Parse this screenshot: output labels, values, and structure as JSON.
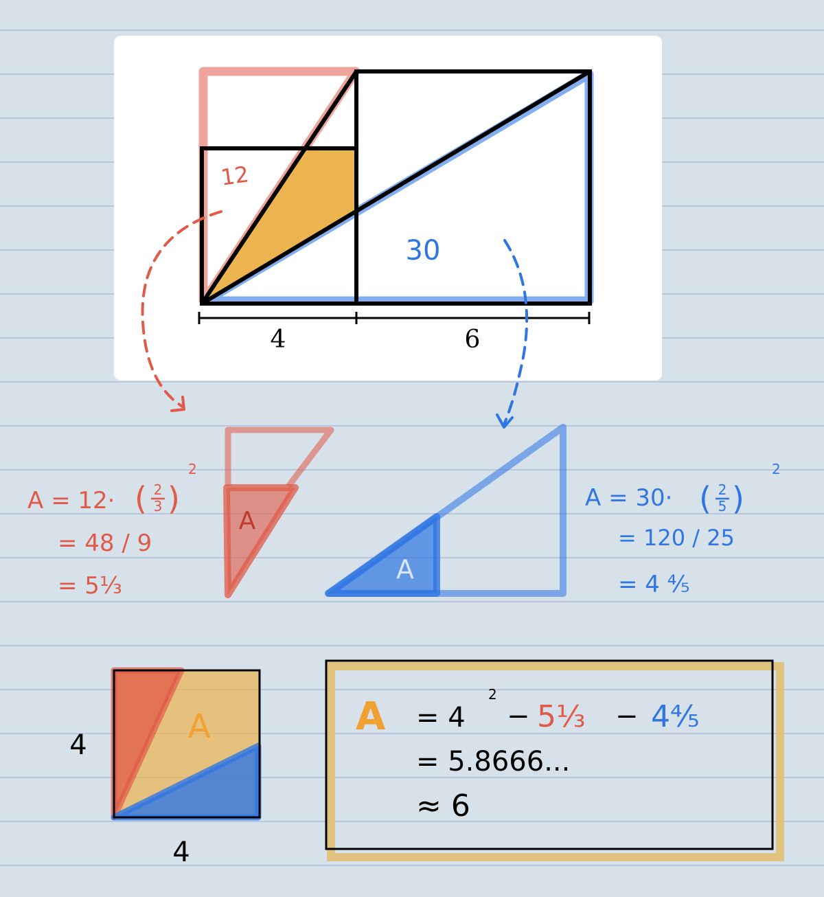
{
  "figure": {
    "small_area_label": "12",
    "large_area_label": "30",
    "width_left": "4",
    "width_right": "6"
  },
  "red_calc": {
    "formula_prefix": "A = 12·",
    "frac_num": "2",
    "frac_den": "3",
    "exponent": "2",
    "line2": "= 48 / 9",
    "line3": "= 5⅓",
    "triangle_label": "A"
  },
  "blue_calc": {
    "formula_prefix": "A = 30·",
    "frac_num": "2",
    "frac_den": "5",
    "exponent": "2",
    "line2": "= 120 / 25",
    "line3": "= 4 ⁴⁄₅",
    "triangle_label": "A"
  },
  "square": {
    "side_left": "4",
    "side_bottom": "4",
    "region_label": "A"
  },
  "result": {
    "a_label": "A",
    "eq1": "= 4",
    "exp": "2",
    "minus1": "−",
    "term_red": "5⅓",
    "minus2": "−",
    "term_blue": "4⁴⁄₅",
    "line2": "= 5.8666...",
    "line3": "≈ 6"
  },
  "colors": {
    "paper": "#d6e1ea",
    "rule_line": "#a7b8d6",
    "red": "#e05a47",
    "blue": "#2f76e3",
    "orange": "#f0a131",
    "gold_fill": "#ecb44f",
    "gold_frame": "#dfc37e",
    "ink": "#000000"
  }
}
